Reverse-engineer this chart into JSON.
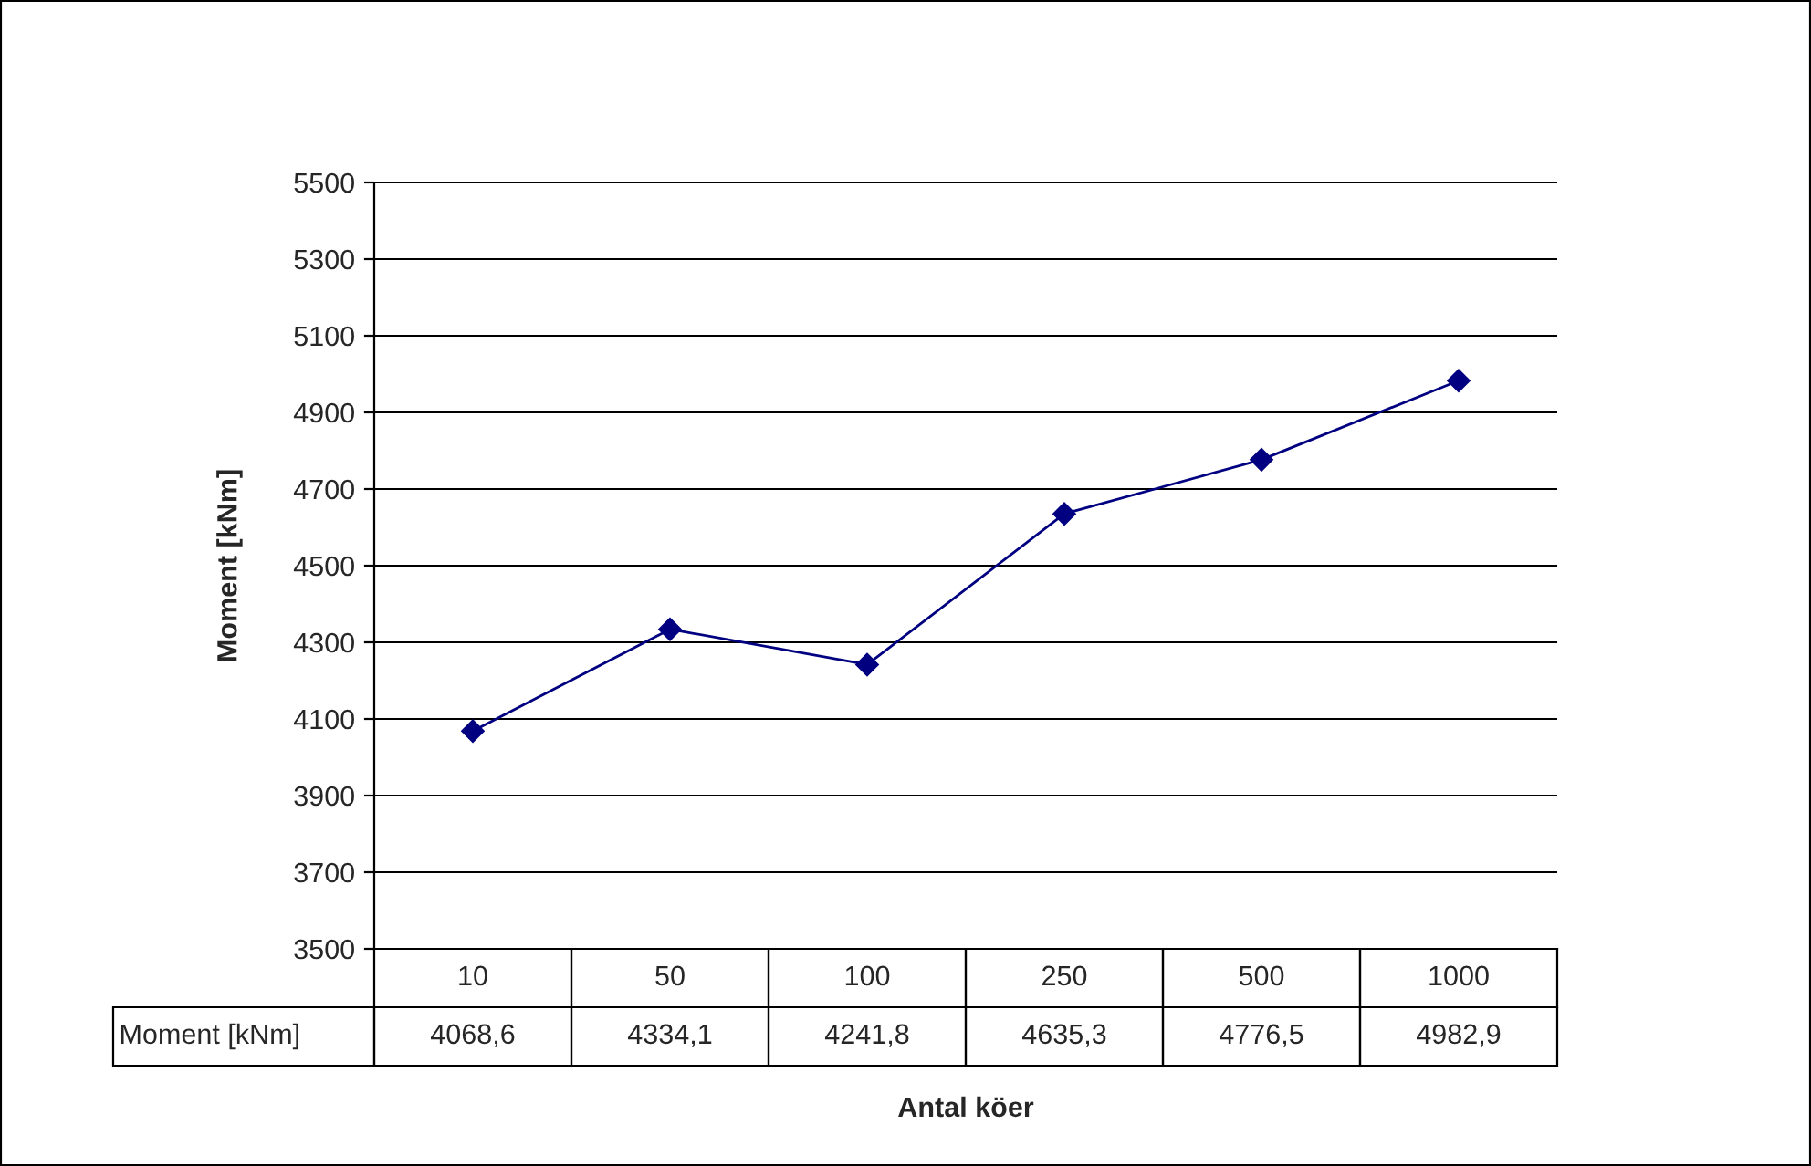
{
  "chart_data": {
    "type": "line",
    "xlabel": "Antal köer",
    "ylabel": "Moment [kNm]",
    "categories": [
      "10",
      "50",
      "100",
      "250",
      "500",
      "1000"
    ],
    "series": [
      {
        "name": "Moment [kNm]",
        "color": "#000080",
        "values": [
          4068.6,
          4334.1,
          4241.8,
          4635.3,
          4776.5,
          4982.9
        ],
        "value_labels": [
          "4068,6",
          "4334,1",
          "4241,8",
          "4635,3",
          "4776,5",
          "4982,9"
        ]
      }
    ],
    "ylim": [
      3500,
      5500
    ],
    "yticks": [
      3500,
      3700,
      3900,
      4100,
      4300,
      4500,
      4700,
      4900,
      5100,
      5300,
      5500
    ],
    "grid": "y",
    "legend": false,
    "marker": "diamond",
    "line_style": "solid"
  }
}
